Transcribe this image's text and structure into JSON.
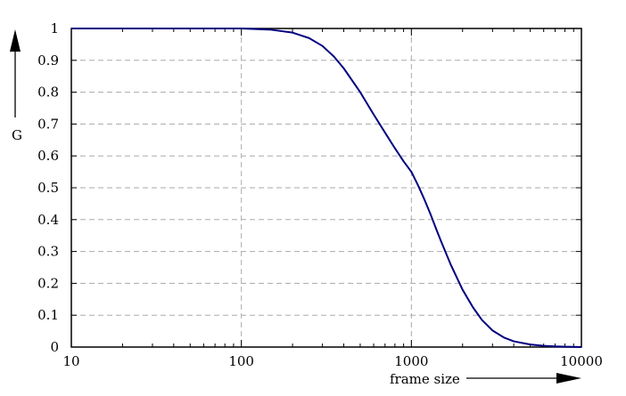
{
  "chart_data": {
    "type": "line",
    "title": "",
    "xlabel": "frame size",
    "ylabel": "G",
    "x_scale": "log",
    "xlim": [
      10,
      10000
    ],
    "ylim": [
      0,
      1
    ],
    "x_ticks": [
      10,
      100,
      1000,
      10000
    ],
    "x_tick_labels": [
      "10",
      "100",
      "1000",
      "10000"
    ],
    "y_ticks": [
      0,
      0.1,
      0.2,
      0.3,
      0.4,
      0.5,
      0.6,
      0.7,
      0.8,
      0.9,
      1
    ],
    "y_tick_labels": [
      "0",
      "0.1",
      "0.2",
      "0.3",
      "0.4",
      "0.5",
      "0.6",
      "0.7",
      "0.8",
      "0.9",
      "1"
    ],
    "grid": true,
    "colors": {
      "series": "#000080",
      "grid": "#aaaaaa",
      "axis": "#000000"
    },
    "series": [
      {
        "name": "",
        "x": [
          10,
          20,
          30,
          50,
          70,
          100,
          150,
          200,
          250,
          300,
          350,
          400,
          500,
          600,
          700,
          800,
          900,
          1000,
          1100,
          1200,
          1300,
          1400,
          1500,
          1700,
          2000,
          2300,
          2600,
          3000,
          3500,
          4000,
          5000,
          6000,
          7000,
          8000,
          10000,
          12000
        ],
        "y": [
          1.0,
          1.0,
          1.0,
          1.0,
          1.0,
          1.0,
          0.996,
          0.987,
          0.97,
          0.945,
          0.912,
          0.875,
          0.8,
          0.73,
          0.673,
          0.624,
          0.583,
          0.55,
          0.505,
          0.46,
          0.415,
          0.37,
          0.33,
          0.26,
          0.18,
          0.125,
          0.085,
          0.052,
          0.03,
          0.018,
          0.008,
          0.004,
          0.002,
          0.001,
          0.0,
          0.0
        ]
      }
    ]
  }
}
